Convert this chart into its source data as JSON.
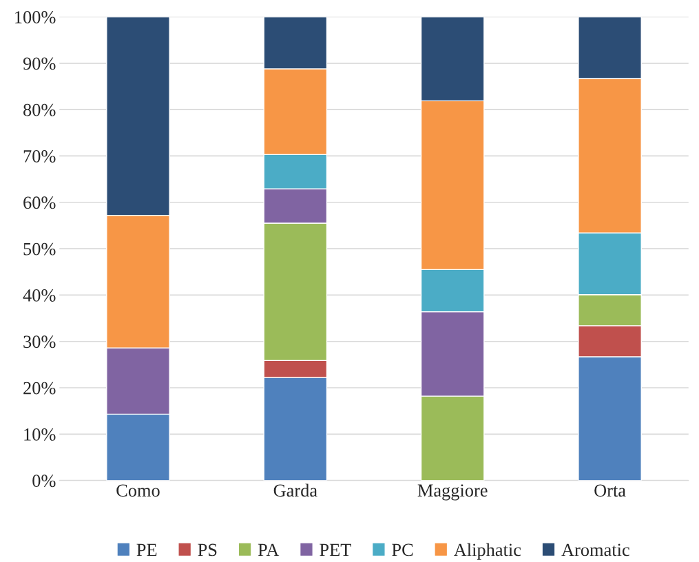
{
  "chart_data": {
    "type": "bar",
    "stacked": true,
    "categories": [
      "Como",
      "Garda",
      "Maggiore",
      "Orta"
    ],
    "series": [
      {
        "name": "PE",
        "color": "#4f81bd",
        "values": [
          14.3,
          22.2,
          0,
          26.7
        ]
      },
      {
        "name": "PS",
        "color": "#c0504d",
        "values": [
          0,
          3.7,
          0,
          6.7
        ]
      },
      {
        "name": "PA",
        "color": "#9bbb59",
        "values": [
          0,
          29.6,
          18.2,
          6.7
        ]
      },
      {
        "name": "PET",
        "color": "#8064a2",
        "values": [
          14.3,
          7.4,
          18.2,
          0
        ]
      },
      {
        "name": "PC",
        "color": "#4bacc6",
        "values": [
          0,
          7.4,
          9.1,
          13.3
        ]
      },
      {
        "name": "Aliphatic",
        "color": "#f79646",
        "values": [
          28.6,
          18.5,
          36.4,
          33.3
        ]
      },
      {
        "name": "Aromatic",
        "color": "#2c4d75",
        "values": [
          42.8,
          11.2,
          18.1,
          13.3
        ]
      }
    ],
    "ylim": [
      0,
      100
    ],
    "yticks": [
      {
        "value": 0,
        "label": "0%"
      },
      {
        "value": 10,
        "label": "10%"
      },
      {
        "value": 20,
        "label": "20%"
      },
      {
        "value": 30,
        "label": "30%"
      },
      {
        "value": 40,
        "label": "40%"
      },
      {
        "value": 50,
        "label": "50%"
      },
      {
        "value": 60,
        "label": "60%"
      },
      {
        "value": 70,
        "label": "70%"
      },
      {
        "value": 80,
        "label": "80%"
      },
      {
        "value": 90,
        "label": "90%"
      },
      {
        "value": 100,
        "label": "100%"
      }
    ],
    "grid": "y",
    "legend": "bottom"
  }
}
